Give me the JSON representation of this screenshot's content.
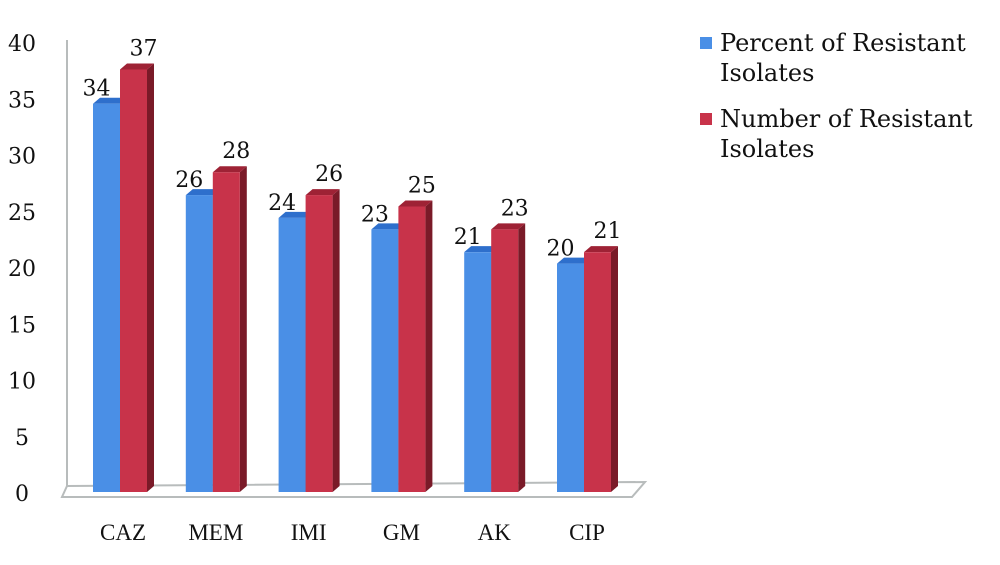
{
  "chart_data": {
    "type": "bar",
    "style": "3d-clustered-column",
    "categories": [
      "CAZ",
      "MEM",
      "IMI",
      "GM",
      "AK",
      "CIP"
    ],
    "series": [
      {
        "name": "Percent of Resistant Isolates",
        "values": [
          34,
          26,
          24,
          23,
          21,
          20
        ],
        "color": "#4a8fe6"
      },
      {
        "name": "Number of Resistant Isolates",
        "values": [
          37,
          28,
          26,
          25,
          23,
          21
        ],
        "color": "#c8334a"
      }
    ],
    "ylim": [
      0,
      40
    ],
    "yticks": [
      0,
      5,
      10,
      15,
      20,
      25,
      30,
      35,
      40
    ],
    "grid": false,
    "legend_position": "right",
    "data_labels": true,
    "title": "",
    "xlabel": "",
    "ylabel": ""
  }
}
